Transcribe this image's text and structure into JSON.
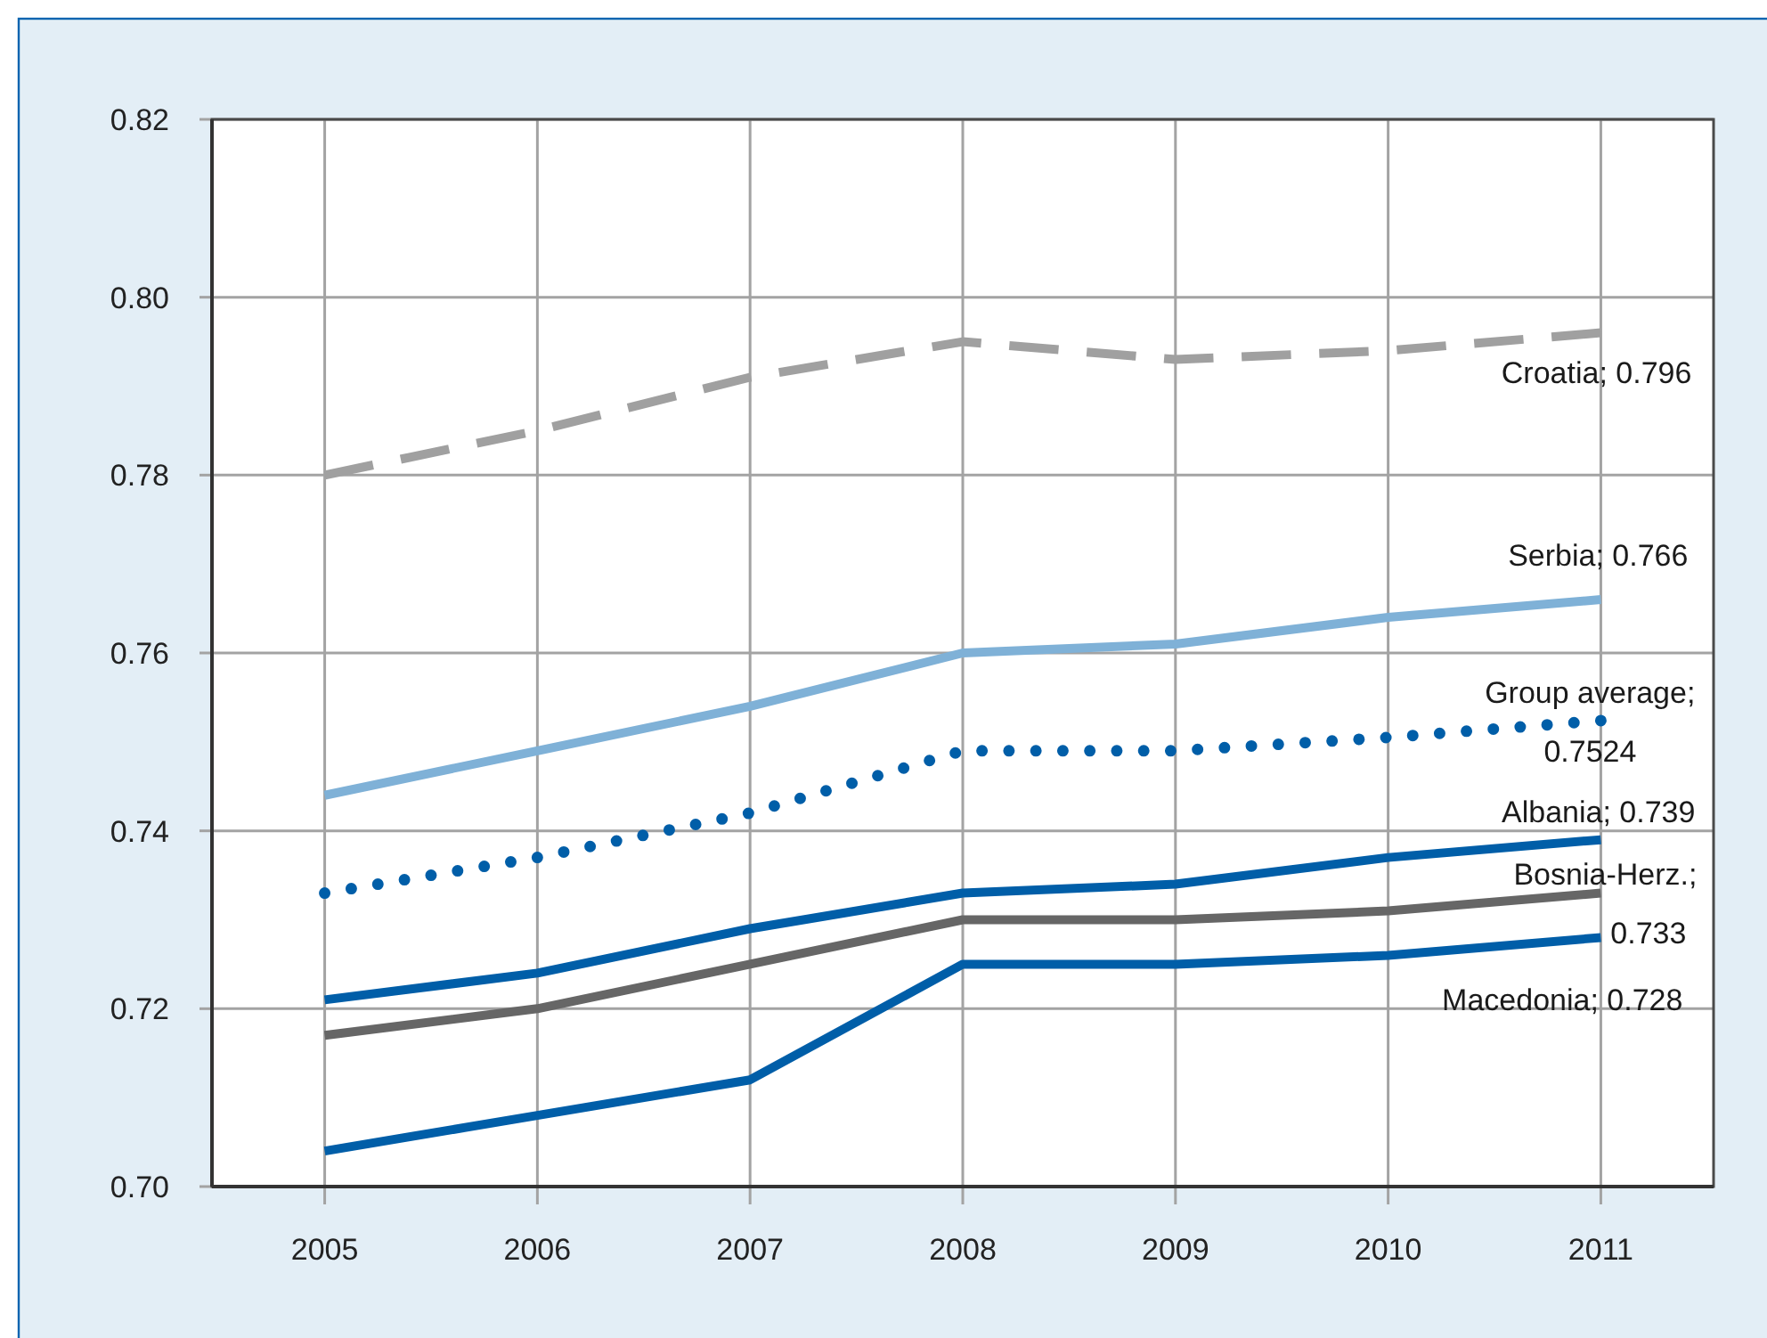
{
  "chart_data": {
    "type": "line",
    "categories": [
      "2005",
      "2006",
      "2007",
      "2008",
      "2009",
      "2010",
      "2011"
    ],
    "ylim": [
      0.7,
      0.82
    ],
    "yticks": [
      {
        "value": 0.7,
        "label": "0.70"
      },
      0.72,
      0.74,
      0.76,
      0.78,
      {
        "value": 0.8,
        "label": "0.80"
      },
      0.82
    ],
    "grid": true,
    "series": [
      {
        "color": "#a0a0a0",
        "line_style": "dashed",
        "values": [
          0.78,
          0.785,
          0.791,
          0.795,
          0.793,
          0.794,
          0.796
        ],
        "value_labels": [
          null,
          null,
          null,
          null,
          null,
          null,
          "Croatia; 0.796"
        ]
      },
      {
        "color": "#7fb1d7",
        "line_style": "solid",
        "values": [
          0.744,
          0.749,
          0.754,
          0.76,
          0.761,
          0.764,
          0.766
        ],
        "value_labels": [
          null,
          null,
          null,
          null,
          null,
          null,
          "Serbia; 0.766"
        ]
      },
      {
        "color": "#005ea8",
        "line_style": "dotted",
        "values": [
          0.733,
          0.737,
          0.742,
          0.749,
          0.749,
          0.7505,
          0.7524
        ],
        "value_labels": [
          null,
          null,
          null,
          null,
          null,
          null,
          "Group average; 0.7524"
        ]
      },
      {
        "color": "#005ea8",
        "line_style": "solid",
        "values": [
          0.721,
          0.724,
          0.729,
          0.733,
          0.734,
          0.737,
          0.739
        ],
        "value_labels": [
          null,
          null,
          null,
          null,
          null,
          null,
          "Albania; 0.739"
        ]
      },
      {
        "color": "#666666",
        "line_style": "solid",
        "values": [
          0.717,
          0.72,
          0.725,
          0.73,
          0.73,
          0.731,
          0.733
        ],
        "value_labels": [
          null,
          null,
          null,
          null,
          null,
          null,
          "Bosnia-Herz.; 0.733"
        ]
      },
      {
        "color": "#005ea8",
        "line_style": "solid",
        "values": [
          0.704,
          0.708,
          0.712,
          0.725,
          0.725,
          0.726,
          0.728
        ],
        "value_labels": [
          null,
          null,
          null,
          null,
          null,
          null,
          "Macedonia; 0.728"
        ]
      }
    ]
  }
}
